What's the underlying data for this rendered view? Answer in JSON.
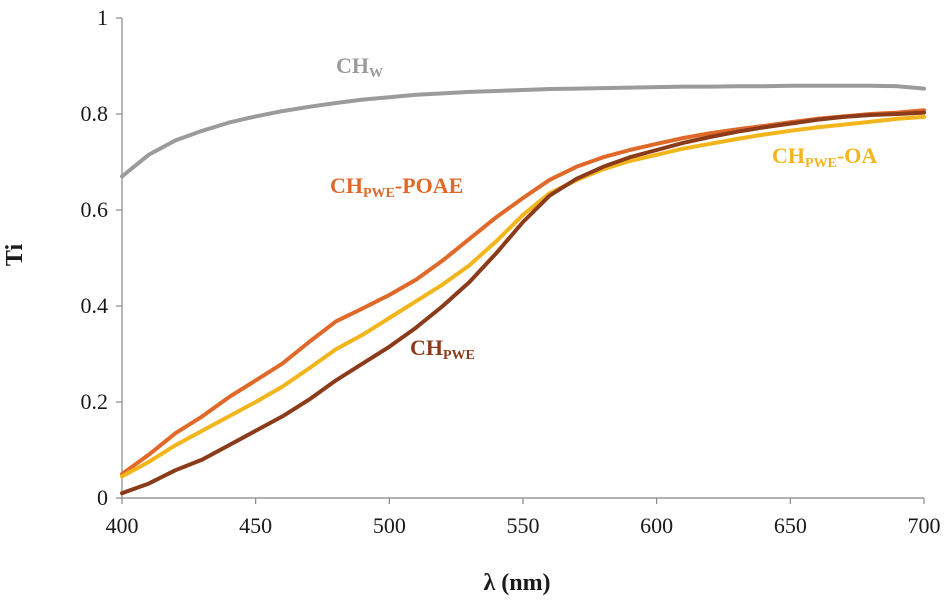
{
  "chart_data": {
    "type": "line",
    "title": "",
    "xlabel": "λ (nm)",
    "ylabel": "Ti",
    "xlim": [
      400,
      700
    ],
    "ylim": [
      0,
      1
    ],
    "x_ticks": [
      400,
      450,
      500,
      550,
      600,
      650,
      700
    ],
    "y_ticks": [
      0,
      0.2,
      0.4,
      0.6,
      0.8,
      1
    ],
    "y_tick_labels": [
      "0",
      "0.2",
      "0.4",
      "0.6",
      "0.8",
      "1"
    ],
    "grid": false,
    "x": [
      400,
      410,
      420,
      430,
      440,
      450,
      460,
      470,
      480,
      490,
      500,
      510,
      520,
      530,
      540,
      550,
      560,
      570,
      580,
      590,
      600,
      610,
      620,
      630,
      640,
      650,
      660,
      670,
      680,
      690,
      700
    ],
    "series": [
      {
        "name": "CHW",
        "label_main": "CH",
        "label_sub": "W",
        "label_suffix": "",
        "color": "#9b9b9b",
        "values": [
          0.67,
          0.715,
          0.745,
          0.765,
          0.782,
          0.795,
          0.806,
          0.815,
          0.823,
          0.83,
          0.835,
          0.84,
          0.843,
          0.846,
          0.848,
          0.85,
          0.852,
          0.853,
          0.854,
          0.855,
          0.856,
          0.857,
          0.857,
          0.858,
          0.858,
          0.859,
          0.859,
          0.859,
          0.859,
          0.858,
          0.853
        ]
      },
      {
        "name": "CHPWE-POAE",
        "label_main": "CH",
        "label_sub": "PWE",
        "label_suffix": "-POAE",
        "color": "#e0692a",
        "values": [
          0.05,
          0.09,
          0.135,
          0.17,
          0.21,
          0.245,
          0.28,
          0.325,
          0.368,
          0.395,
          0.423,
          0.455,
          0.495,
          0.54,
          0.585,
          0.625,
          0.663,
          0.69,
          0.71,
          0.725,
          0.738,
          0.75,
          0.76,
          0.768,
          0.775,
          0.783,
          0.79,
          0.795,
          0.8,
          0.803,
          0.808
        ]
      },
      {
        "name": "CHPWE-OA",
        "label_main": "CH",
        "label_sub": "PWE",
        "label_suffix": "-OA",
        "color": "#f2b51b",
        "values": [
          0.045,
          0.075,
          0.11,
          0.14,
          0.17,
          0.2,
          0.232,
          0.27,
          0.31,
          0.34,
          0.375,
          0.41,
          0.445,
          0.485,
          0.535,
          0.59,
          0.635,
          0.662,
          0.685,
          0.702,
          0.715,
          0.728,
          0.738,
          0.748,
          0.757,
          0.765,
          0.772,
          0.778,
          0.784,
          0.79,
          0.794
        ]
      },
      {
        "name": "CHPWE",
        "label_main": "CH",
        "label_sub": "PWE",
        "label_suffix": "",
        "color": "#8c3b1a",
        "values": [
          0.01,
          0.03,
          0.058,
          0.08,
          0.11,
          0.14,
          0.17,
          0.205,
          0.245,
          0.28,
          0.315,
          0.355,
          0.4,
          0.45,
          0.51,
          0.575,
          0.63,
          0.665,
          0.69,
          0.71,
          0.725,
          0.74,
          0.752,
          0.763,
          0.772,
          0.78,
          0.788,
          0.794,
          0.798,
          0.8,
          0.803
        ]
      }
    ]
  }
}
